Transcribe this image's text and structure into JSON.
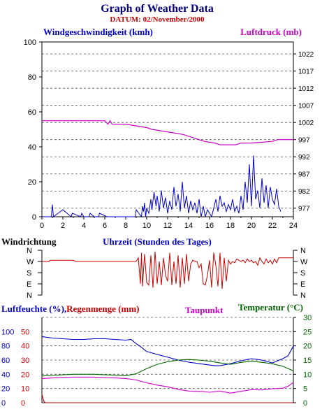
{
  "header": {
    "title": "Graph of Weather Data",
    "subtitle": "DATUM: 02/November/2000"
  },
  "colors": {
    "navy": "#000080",
    "blue": "#0000cc",
    "magenta": "#cc00cc",
    "red": "#cc0000",
    "green": "#006400",
    "grid": "#555555"
  },
  "chart_data": [
    {
      "type": "line",
      "xlabel": "Uhrzeit (Stunden des Tages)",
      "xlim": [
        0,
        24
      ],
      "x_ticks": [
        "0",
        "2",
        "4",
        "6",
        "8",
        "10",
        "12",
        "14",
        "16",
        "18",
        "20",
        "22",
        "24"
      ],
      "left_axis": {
        "label": "Windgeschwindigkeit (kmh)",
        "ylim": [
          0,
          100
        ],
        "ticks": [
          "0",
          "20",
          "40",
          "60",
          "80",
          "100"
        ]
      },
      "right_axis": {
        "label": "Luftdruck (mb)",
        "ylim": [
          974.5,
          1025.5
        ],
        "ticks": [
          "977",
          "982",
          "987",
          "992",
          "997",
          "1002",
          "1007",
          "1012",
          "1017",
          "1022"
        ]
      },
      "grid": true,
      "series": [
        {
          "name": "Windgeschwindigkeit (kmh)",
          "axis": "left",
          "x": [
            0,
            0.9,
            1.0,
            1.1,
            2.0,
            2.8,
            2.9,
            3.7,
            3.8,
            4.0,
            4.5,
            4.6,
            5.0,
            5.4,
            5.5,
            6.2,
            6.3,
            8.9,
            9.0,
            9.5,
            9.6,
            9.7,
            9.8,
            9.9,
            10.0,
            10.2,
            10.4,
            10.5,
            10.7,
            10.9,
            11.0,
            11.2,
            11.4,
            11.6,
            11.8,
            12.0,
            12.2,
            12.4,
            12.6,
            12.8,
            13.0,
            13.2,
            13.4,
            13.6,
            13.8,
            14.0,
            14.2,
            14.4,
            14.6,
            14.8,
            15.0,
            15.2,
            15.4,
            15.6,
            15.8,
            16.0,
            16.2,
            16.4,
            16.6,
            16.8,
            17.0,
            17.2,
            17.4,
            17.6,
            17.8,
            18.0,
            18.2,
            18.4,
            18.6,
            18.8,
            19.0,
            19.2,
            19.4,
            19.6,
            19.8,
            20.0,
            20.2,
            20.4,
            20.6,
            20.8,
            21.0,
            21.2,
            21.4,
            21.6,
            21.8,
            22.0,
            22.2,
            22.4,
            22.6,
            22.8
          ],
          "values": [
            0,
            0,
            7,
            0,
            4,
            0,
            2,
            0,
            2,
            0,
            0,
            2,
            0,
            0,
            2,
            0,
            0,
            0,
            4,
            0,
            6,
            3,
            8,
            0,
            5,
            2,
            10,
            4,
            14,
            6,
            12,
            3,
            15,
            5,
            11,
            2,
            9,
            4,
            17,
            6,
            13,
            3,
            20,
            5,
            12,
            2,
            9,
            4,
            8,
            2,
            10,
            0,
            6,
            0,
            4,
            2,
            0,
            5,
            10,
            3,
            12,
            6,
            8,
            3,
            7,
            4,
            10,
            3,
            6,
            2,
            12,
            4,
            20,
            8,
            30,
            6,
            35,
            10,
            15,
            5,
            22,
            8,
            18,
            5,
            17,
            10,
            7,
            16,
            6,
            3
          ]
        },
        {
          "name": "Luftdruck (mb)",
          "axis": "right",
          "x": [
            0,
            6.0,
            6.3,
            6.5,
            6.7,
            8.0,
            10.0,
            10.5,
            11.5,
            12.5,
            13.5,
            14.5,
            15.5,
            16.5,
            17.0,
            18.5,
            19.0,
            20.0,
            22.0,
            22.5,
            24
          ],
          "values": [
            1002.5,
            1002.5,
            1001.5,
            1002.5,
            1001.5,
            1001.5,
            1000.5,
            1000.0,
            999.5,
            999.0,
            998.5,
            997.5,
            996.5,
            996.0,
            995.5,
            995.5,
            996.0,
            996.0,
            996.5,
            997.0,
            997.0
          ]
        }
      ]
    },
    {
      "type": "line",
      "ylabel": "Windrichtung",
      "xlim": [
        0,
        24
      ],
      "y_categories": [
        "N",
        "W",
        "S",
        "E",
        "N"
      ],
      "series": [
        {
          "name": "Windrichtung",
          "x": [
            0,
            0.7,
            0.8,
            3.0,
            3.2,
            9.0,
            9.2,
            9.4,
            9.5,
            9.6,
            9.8,
            10.0,
            10.2,
            10.4,
            10.6,
            10.8,
            11.0,
            11.2,
            11.4,
            11.6,
            11.8,
            12.0,
            12.2,
            12.4,
            12.6,
            12.8,
            13.0,
            13.2,
            13.4,
            13.6,
            13.8,
            14.0,
            14.2,
            14.4,
            14.6,
            14.8,
            15.0,
            15.2,
            15.4,
            15.6,
            15.8,
            16.0,
            16.2,
            16.4,
            16.6,
            16.8,
            17.0,
            17.2,
            17.4,
            17.6,
            17.8,
            18.0,
            18.2,
            18.4,
            18.6,
            18.8,
            19.0,
            19.2,
            19.4,
            19.6,
            19.8,
            20.0,
            20.2,
            20.4,
            20.6,
            20.8,
            21.0,
            21.2,
            21.4,
            21.6,
            21.8,
            22.0,
            22.2,
            22.4,
            22.6,
            23.0,
            24
          ],
          "values": [
            90,
            90,
            80,
            80,
            90,
            90,
            60,
            270,
            20,
            290,
            30,
            260,
            280,
            40,
            300,
            10,
            270,
            90,
            280,
            60,
            200,
            250,
            20,
            280,
            90,
            270,
            40,
            300,
            60,
            270,
            30,
            250,
            110,
            80,
            90,
            90,
            140,
            110,
            270,
            280,
            200,
            80,
            300,
            20,
            120,
            290,
            20,
            310,
            60,
            250,
            80,
            110,
            90,
            100,
            70,
            80,
            90,
            80,
            100,
            70,
            90,
            80,
            100,
            90,
            120,
            60,
            90,
            110,
            70,
            100,
            80,
            110,
            70,
            100,
            60,
            60,
            60
          ]
        }
      ]
    },
    {
      "type": "line",
      "xlim": [
        0,
        24
      ],
      "axes": {
        "Luftfeuchte (%)": {
          "ylim": [
            0,
            120
          ],
          "ticks": [
            "0",
            "20",
            "40",
            "60",
            "80",
            "100"
          ]
        },
        "Regenmenge (mm)": {
          "ylim": [
            0,
            60
          ],
          "ticks": [
            "0",
            "10",
            "20",
            "30",
            "40",
            "50"
          ]
        },
        "Taupunkt": {
          "ylim": [
            0,
            30
          ]
        },
        "Temperatur (°C)": {
          "ylim": [
            0,
            30
          ],
          "ticks": [
            "0",
            "5",
            "10",
            "15",
            "20",
            "25",
            "30"
          ]
        }
      },
      "legend": {
        "humidity": "Luftfeuchte (%),",
        "rain": "Regenmenge (mm)",
        "dewpoint": "Taupunkt",
        "temperature": "Temperatur (",
        "temperature_unit": "°C)"
      },
      "series": [
        {
          "name": "Luftfeuchte (%)",
          "axis": "Luftfeuchte (%)",
          "x": [
            0,
            1,
            2,
            3,
            4,
            5,
            6,
            7,
            8,
            8.5,
            9,
            9.5,
            10,
            11,
            12,
            13,
            14,
            15,
            16,
            16.5,
            17,
            18,
            19,
            20,
            21,
            22,
            23,
            23.5,
            24
          ],
          "values": [
            93,
            91,
            90,
            89,
            89,
            90,
            90,
            89,
            88,
            89,
            83,
            78,
            72,
            68,
            64,
            60,
            57,
            55,
            53,
            52,
            52,
            55,
            59,
            62,
            60,
            56,
            62,
            66,
            80
          ]
        },
        {
          "name": "Regenmenge (mm)",
          "axis": "Regenmenge (mm)",
          "x": [
            0,
            0.1,
            0.2,
            0.3,
            24
          ],
          "values": [
            6,
            3,
            1,
            0,
            0
          ]
        },
        {
          "name": "Taupunkt",
          "axis": "Taupunkt",
          "x": [
            0,
            1,
            2,
            3,
            4,
            5,
            6,
            7,
            8,
            9,
            10,
            11,
            12,
            13,
            14,
            15,
            16,
            17,
            18,
            19,
            20,
            21,
            22,
            23,
            23.5,
            24
          ],
          "values": [
            8.5,
            8.7,
            8.9,
            9.0,
            9.0,
            9.0,
            8.8,
            8.7,
            8.5,
            8.0,
            7.0,
            6.2,
            5.6,
            4.7,
            4.1,
            4.0,
            3.7,
            4.1,
            3.4,
            4.0,
            4.6,
            4.5,
            4.9,
            5.1,
            5.8,
            7.1
          ]
        },
        {
          "name": "Temperatur (°C)",
          "axis": "Temperatur (°C)",
          "x": [
            0,
            1,
            2,
            3,
            4,
            5,
            6,
            7,
            8,
            9,
            10,
            11,
            12,
            13,
            14,
            15,
            16,
            17,
            18,
            19,
            20,
            21,
            22,
            23,
            24
          ],
          "values": [
            9.4,
            9.6,
            9.8,
            10.0,
            10.0,
            10.0,
            9.8,
            9.7,
            9.5,
            10.2,
            12.0,
            13.5,
            14.4,
            15.0,
            15.2,
            15.0,
            14.6,
            14.0,
            13.5,
            14.2,
            14.6,
            14.2,
            13.7,
            12.8,
            11.2
          ]
        }
      ]
    }
  ]
}
